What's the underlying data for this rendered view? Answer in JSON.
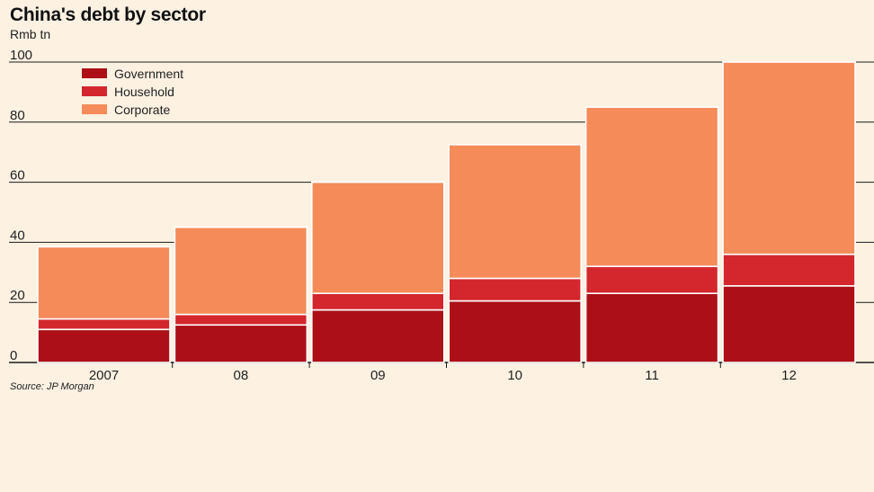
{
  "chart_data": {
    "type": "bar",
    "stacked": true,
    "title": "China's debt by sector",
    "subtitle": "Rmb tn",
    "categories": [
      "2007",
      "08",
      "09",
      "10",
      "11",
      "12"
    ],
    "series": [
      {
        "name": "Government",
        "color": "#ad0f17",
        "values": [
          11,
          12.5,
          17.5,
          20.5,
          23,
          25.5
        ]
      },
      {
        "name": "Household",
        "color": "#d4262d",
        "values": [
          3.5,
          3.5,
          5.5,
          7.5,
          9,
          10.5
        ]
      },
      {
        "name": "Corporate",
        "color": "#f48b59",
        "values": [
          24,
          29,
          37,
          44.5,
          53,
          64
        ]
      }
    ],
    "ylim": [
      0,
      100
    ],
    "yticks": [
      0,
      20,
      40,
      60,
      80,
      100
    ],
    "grid": true,
    "legend": "top-left",
    "source": "Source: JP Morgan"
  }
}
